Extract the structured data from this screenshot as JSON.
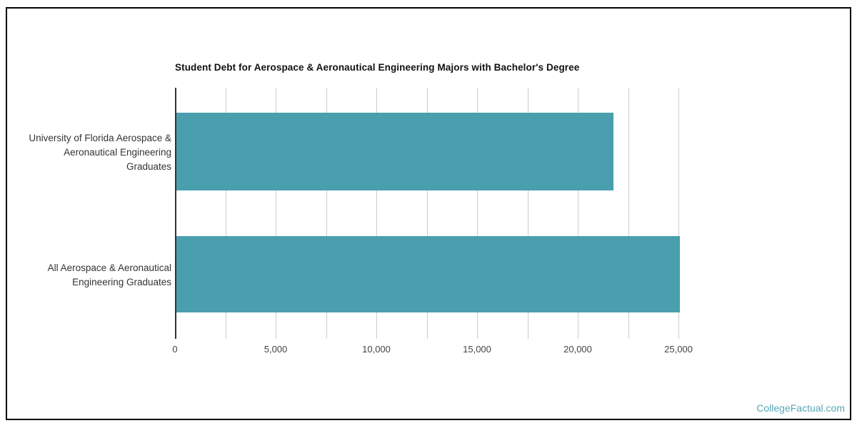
{
  "chart_data": {
    "type": "bar",
    "orientation": "horizontal",
    "title": "Student Debt for Aerospace & Aeronautical Engineering Majors with Bachelor's Degree",
    "categories": [
      {
        "name": "University of Florida Aerospace & Aeronautical Engineering Graduates",
        "lines": [
          "University of Florida Aerospace &",
          "Aeronautical Engineering",
          "Graduates"
        ]
      },
      {
        "name": "All Aerospace & Aeronautical Engineering Graduates",
        "lines": [
          "All Aerospace & Aeronautical",
          "Engineering Graduates"
        ]
      }
    ],
    "values": [
      21700,
      25000
    ],
    "xlabel": "",
    "ylabel": "",
    "xlim": [
      0,
      25000
    ],
    "gridline_step": 2500,
    "x_tick_values": [
      0,
      5000,
      10000,
      15000,
      20000,
      25000
    ],
    "x_tick_labels": [
      "0",
      "5,000",
      "10,000",
      "15,000",
      "20,000",
      "25,000"
    ],
    "legend": "none",
    "grid": true,
    "colors": {
      "bar": "#4A9FAE",
      "gridline": "#CCCCCC",
      "baseline": "#333333",
      "title": "#111111",
      "tick_label": "#444444",
      "category_label": "#333333"
    }
  },
  "footer": {
    "watermark": "CollegeFactual.com",
    "watermark_color": "#55A7B7"
  }
}
